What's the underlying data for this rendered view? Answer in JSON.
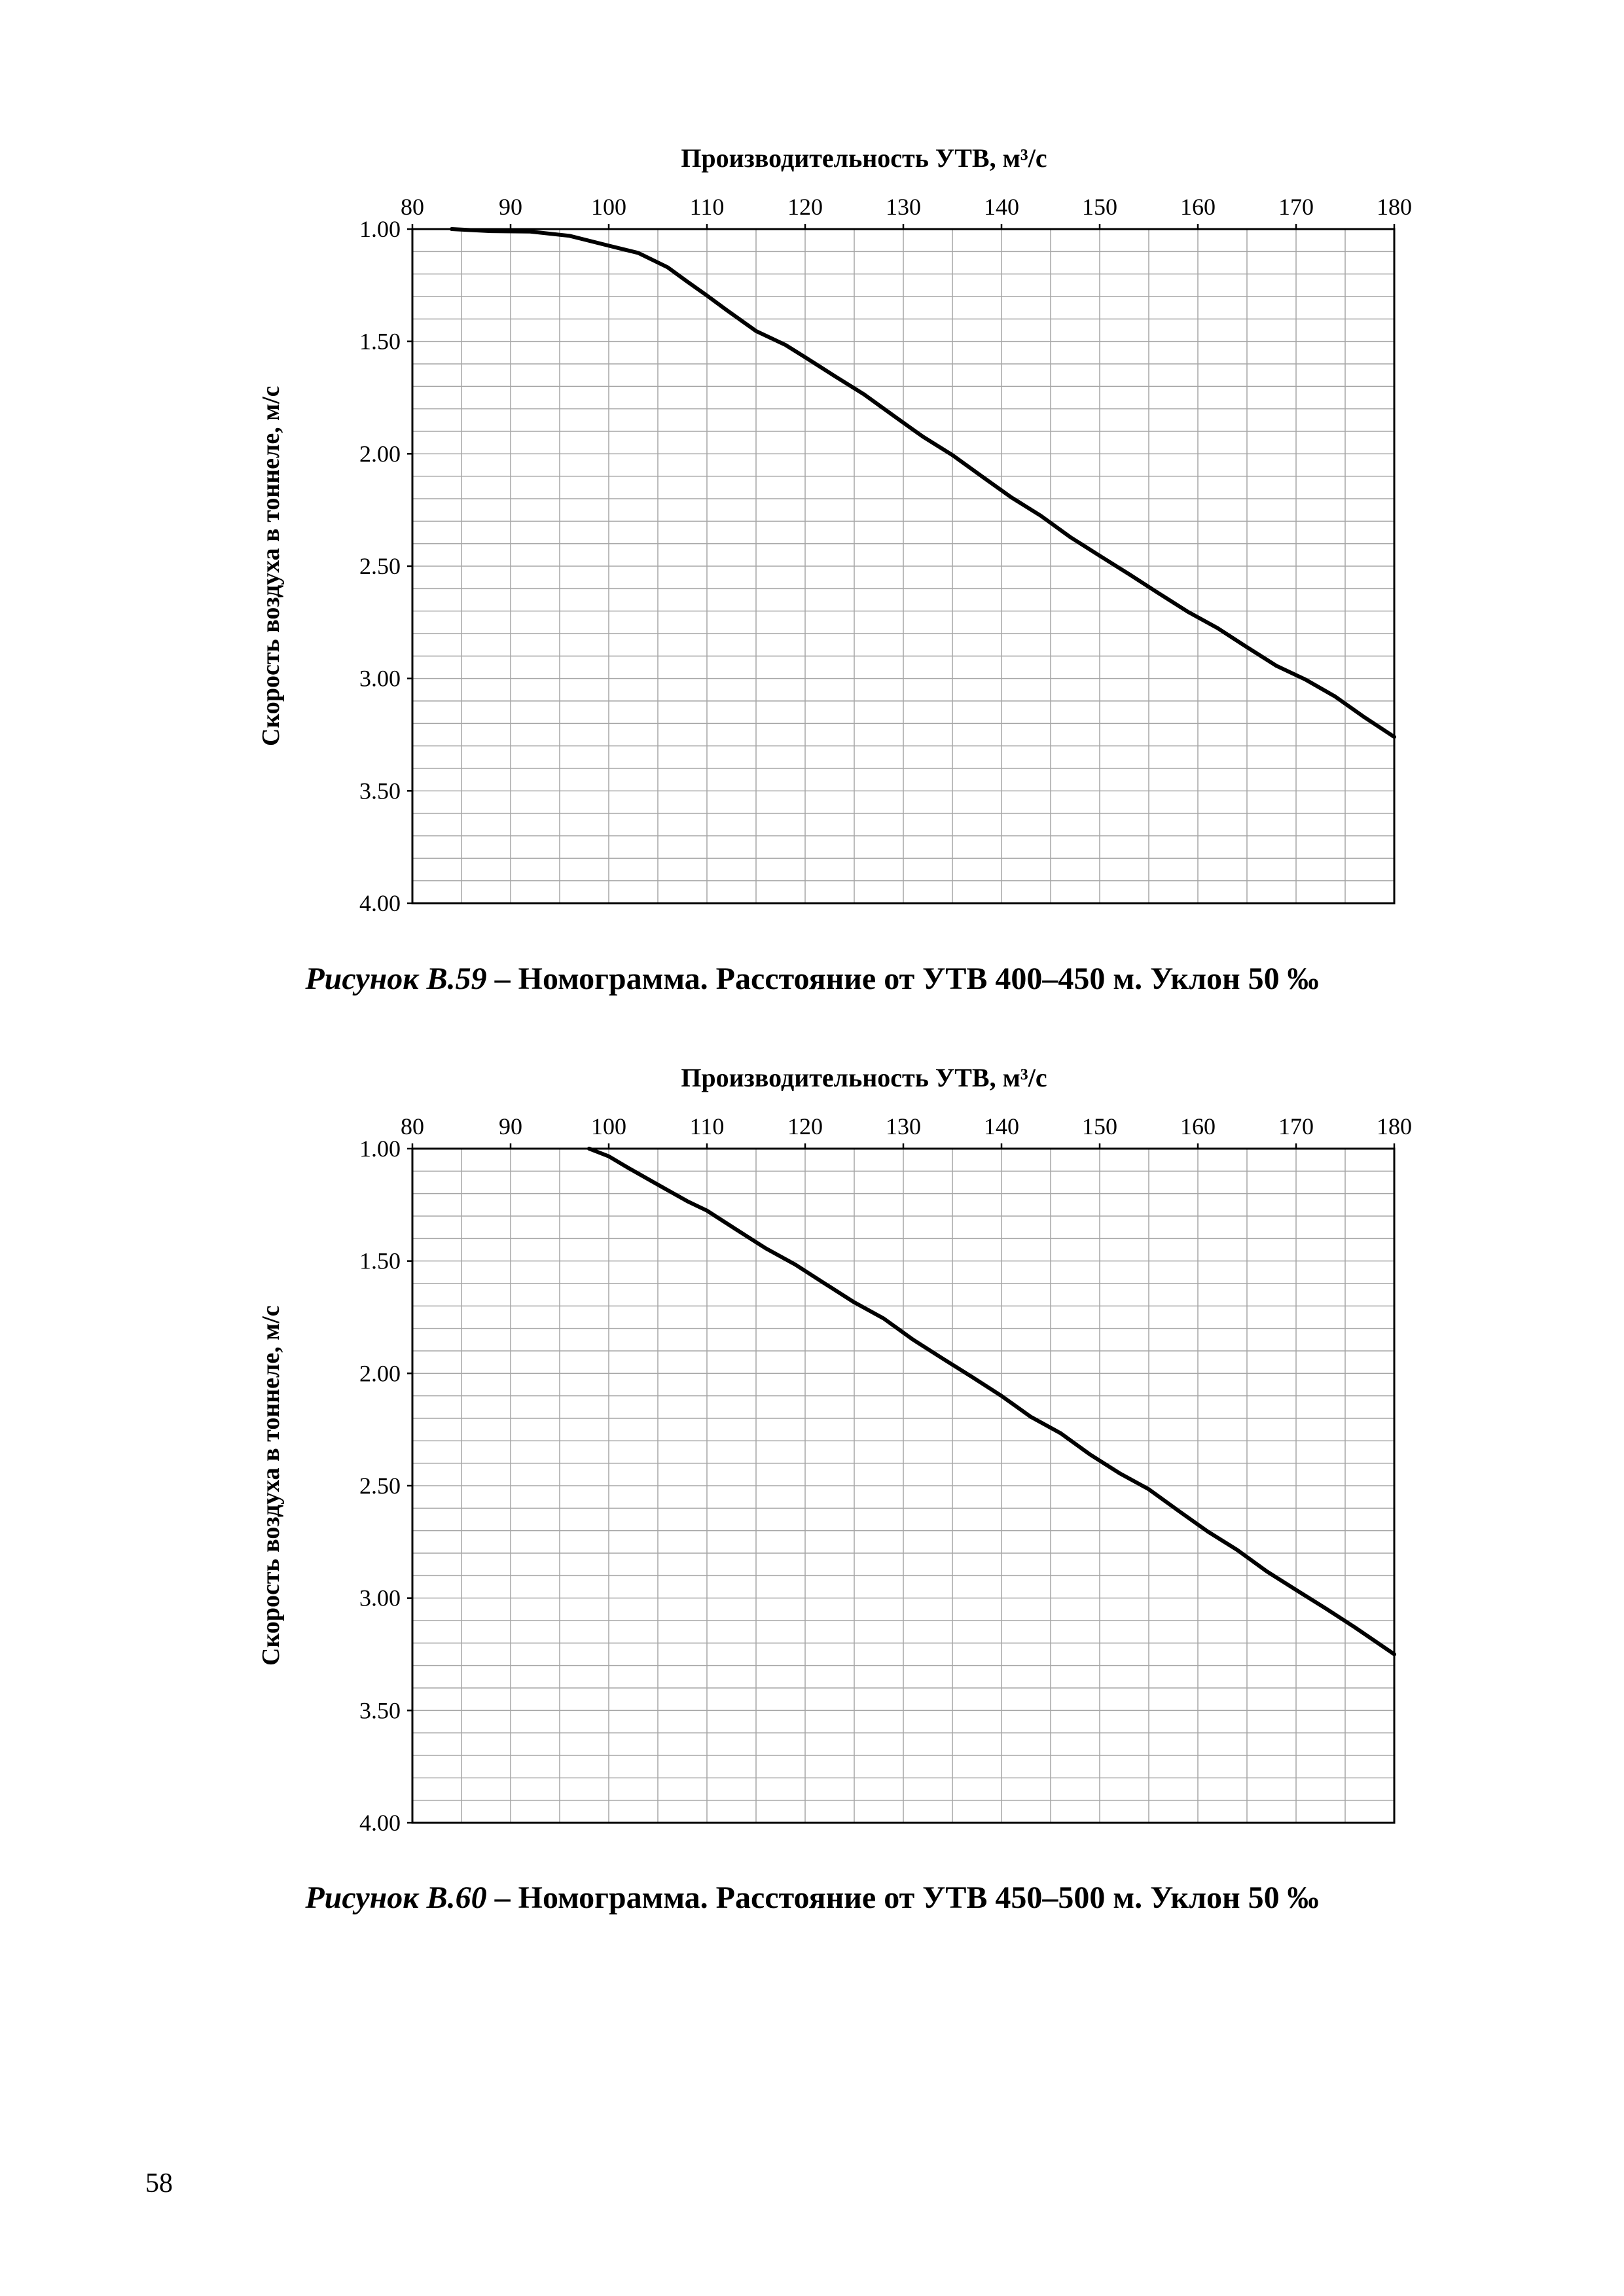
{
  "page": {
    "number": "58",
    "background": "#ffffff"
  },
  "figures": [
    {
      "caption_prefix": "Рисунок В.59",
      "caption_rest": " – Номограмма. Расстояние от УТВ 400–450 м. Уклон 50 ‰"
    },
    {
      "caption_prefix": "Рисунок В.60",
      "caption_rest": " – Номограмма. Расстояние от УТВ 450–500 м. Уклон 50 ‰"
    }
  ],
  "chart_data": [
    {
      "type": "line",
      "title": "Номограмма. Расстояние от УТВ 400–450 м. Уклон 50 ‰",
      "xlabel": "Производительность УТВ, м³/с",
      "ylabel": "Скорость воздуха в тоннеле, м/с",
      "xlim": [
        80,
        180
      ],
      "ylim": [
        1.0,
        4.0
      ],
      "y_inverted": true,
      "x_axis_position": "top",
      "grid": true,
      "x_ticks": [
        80,
        90,
        100,
        110,
        120,
        130,
        140,
        150,
        160,
        170,
        180
      ],
      "y_ticks": [
        1.0,
        1.5,
        2.0,
        2.5,
        3.0,
        3.5,
        4.0
      ],
      "x_minor_step": 5,
      "y_minor_step": 0.1,
      "line_color": "#000000",
      "grid_color": "#a6a6a6",
      "series": [
        {
          "name": "скорость воздуха",
          "points": [
            [
              84,
              1.0
            ],
            [
              88,
              1.005
            ],
            [
              92,
              1.015
            ],
            [
              96,
              1.03
            ],
            [
              100,
              1.07
            ],
            [
              103,
              1.11
            ],
            [
              106,
              1.17
            ],
            [
              108,
              1.23
            ],
            [
              110,
              1.3
            ],
            [
              112,
              1.36
            ],
            [
              115,
              1.45
            ],
            [
              118,
              1.52
            ],
            [
              120,
              1.57
            ],
            [
              123,
              1.65
            ],
            [
              126,
              1.74
            ],
            [
              129,
              1.83
            ],
            [
              132,
              1.92
            ],
            [
              135,
              2.01
            ],
            [
              138,
              2.1
            ],
            [
              141,
              2.19
            ],
            [
              144,
              2.28
            ],
            [
              147,
              2.37
            ],
            [
              150,
              2.45
            ],
            [
              153,
              2.54
            ],
            [
              156,
              2.62
            ],
            [
              159,
              2.7
            ],
            [
              162,
              2.78
            ],
            [
              165,
              2.86
            ],
            [
              168,
              2.94
            ],
            [
              171,
              3.01
            ],
            [
              174,
              3.08
            ],
            [
              177,
              3.17
            ],
            [
              180,
              3.26
            ]
          ]
        }
      ]
    },
    {
      "type": "line",
      "title": "Номограмма. Расстояние от УТВ 450–500 м. Уклон 50 ‰",
      "xlabel": "Производительность УТВ, м³/с",
      "ylabel": "Скорость воздуха в тоннеле, м/с",
      "xlim": [
        80,
        180
      ],
      "ylim": [
        1.0,
        4.0
      ],
      "y_inverted": true,
      "x_axis_position": "top",
      "grid": true,
      "x_ticks": [
        80,
        90,
        100,
        110,
        120,
        130,
        140,
        150,
        160,
        170,
        180
      ],
      "y_ticks": [
        1.0,
        1.5,
        2.0,
        2.5,
        3.0,
        3.5,
        4.0
      ],
      "x_minor_step": 5,
      "y_minor_step": 0.1,
      "line_color": "#000000",
      "grid_color": "#a6a6a6",
      "series": [
        {
          "name": "скорость воздуха",
          "points": [
            [
              98,
              1.0
            ],
            [
              100,
              1.03
            ],
            [
              102,
              1.09
            ],
            [
              105,
              1.16
            ],
            [
              108,
              1.23
            ],
            [
              110,
              1.28
            ],
            [
              113,
              1.36
            ],
            [
              116,
              1.44
            ],
            [
              119,
              1.52
            ],
            [
              122,
              1.6
            ],
            [
              125,
              1.68
            ],
            [
              128,
              1.76
            ],
            [
              131,
              1.85
            ],
            [
              134,
              1.93
            ],
            [
              137,
              2.02
            ],
            [
              140,
              2.1
            ],
            [
              143,
              2.19
            ],
            [
              146,
              2.27
            ],
            [
              149,
              2.36
            ],
            [
              152,
              2.44
            ],
            [
              155,
              2.52
            ],
            [
              158,
              2.61
            ],
            [
              161,
              2.7
            ],
            [
              164,
              2.79
            ],
            [
              167,
              2.88
            ],
            [
              170,
              2.96
            ],
            [
              173,
              3.05
            ],
            [
              176,
              3.13
            ],
            [
              180,
              3.25
            ]
          ]
        }
      ]
    }
  ]
}
